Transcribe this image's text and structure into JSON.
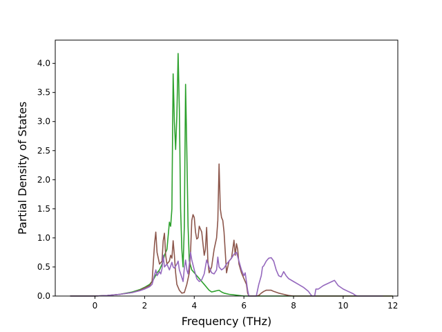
{
  "chart_data": {
    "type": "line",
    "title": "",
    "xlabel": "Frequency (THz)",
    "ylabel": "Partial Density of States",
    "xlim": [
      -1.6,
      12.2
    ],
    "ylim": [
      0.0,
      4.4
    ],
    "xticks": [
      0,
      2,
      4,
      6,
      8,
      10,
      12
    ],
    "yticks": [
      0.0,
      0.5,
      1.0,
      1.5,
      2.0,
      2.5,
      3.0,
      3.5,
      4.0
    ],
    "xtick_labels": [
      "0",
      "2",
      "4",
      "6",
      "8",
      "10",
      "12"
    ],
    "ytick_labels": [
      "0.0",
      "0.5",
      "1.0",
      "1.5",
      "2.0",
      "2.5",
      "3.0",
      "3.5",
      "4.0"
    ],
    "grid": false,
    "legend": "none",
    "series": [
      {
        "color": "#2ca02c",
        "points": [
          [
            -1.0,
            0.0
          ],
          [
            0.0,
            0.0
          ],
          [
            0.5,
            0.01
          ],
          [
            1.0,
            0.03
          ],
          [
            1.5,
            0.07
          ],
          [
            1.8,
            0.11
          ],
          [
            2.0,
            0.15
          ],
          [
            2.2,
            0.2
          ],
          [
            2.35,
            0.28
          ],
          [
            2.5,
            0.4
          ],
          [
            2.6,
            0.45
          ],
          [
            2.7,
            0.55
          ],
          [
            2.8,
            0.7
          ],
          [
            2.9,
            0.8
          ],
          [
            3.0,
            1.27
          ],
          [
            3.05,
            1.2
          ],
          [
            3.1,
            1.5
          ],
          [
            3.15,
            3.82
          ],
          [
            3.2,
            3.0
          ],
          [
            3.25,
            2.52
          ],
          [
            3.3,
            3.1
          ],
          [
            3.35,
            4.17
          ],
          [
            3.4,
            3.2
          ],
          [
            3.45,
            1.5
          ],
          [
            3.5,
            0.8
          ],
          [
            3.55,
            0.5
          ],
          [
            3.6,
            1.2
          ],
          [
            3.65,
            3.64
          ],
          [
            3.7,
            2.5
          ],
          [
            3.75,
            1.2
          ],
          [
            3.8,
            0.6
          ],
          [
            3.9,
            0.45
          ],
          [
            4.0,
            0.4
          ],
          [
            4.1,
            0.35
          ],
          [
            4.2,
            0.3
          ],
          [
            4.3,
            0.25
          ],
          [
            4.4,
            0.2
          ],
          [
            4.5,
            0.15
          ],
          [
            4.6,
            0.1
          ],
          [
            4.7,
            0.07
          ],
          [
            4.8,
            0.08
          ],
          [
            4.9,
            0.09
          ],
          [
            5.0,
            0.1
          ],
          [
            5.1,
            0.07
          ],
          [
            5.2,
            0.05
          ],
          [
            5.4,
            0.03
          ],
          [
            5.6,
            0.02
          ],
          [
            5.8,
            0.01
          ],
          [
            6.0,
            0.0
          ],
          [
            12.0,
            0.0
          ]
        ]
      },
      {
        "color": "#8c564b",
        "points": [
          [
            -1.0,
            0.0
          ],
          [
            0.0,
            0.0
          ],
          [
            0.5,
            0.01
          ],
          [
            1.0,
            0.03
          ],
          [
            1.5,
            0.06
          ],
          [
            1.8,
            0.1
          ],
          [
            2.0,
            0.14
          ],
          [
            2.2,
            0.18
          ],
          [
            2.3,
            0.25
          ],
          [
            2.4,
            0.9
          ],
          [
            2.45,
            1.1
          ],
          [
            2.5,
            0.75
          ],
          [
            2.6,
            0.55
          ],
          [
            2.7,
            0.6
          ],
          [
            2.75,
            0.95
          ],
          [
            2.8,
            1.08
          ],
          [
            2.85,
            0.7
          ],
          [
            2.9,
            0.55
          ],
          [
            3.0,
            0.6
          ],
          [
            3.05,
            0.7
          ],
          [
            3.1,
            0.65
          ],
          [
            3.15,
            0.95
          ],
          [
            3.2,
            0.7
          ],
          [
            3.25,
            0.4
          ],
          [
            3.3,
            0.2
          ],
          [
            3.4,
            0.1
          ],
          [
            3.5,
            0.05
          ],
          [
            3.6,
            0.06
          ],
          [
            3.7,
            0.2
          ],
          [
            3.8,
            0.4
          ],
          [
            3.85,
            0.75
          ],
          [
            3.9,
            1.3
          ],
          [
            3.95,
            1.4
          ],
          [
            4.0,
            1.35
          ],
          [
            4.05,
            1.1
          ],
          [
            4.1,
            0.98
          ],
          [
            4.15,
            1.0
          ],
          [
            4.2,
            1.2
          ],
          [
            4.25,
            1.15
          ],
          [
            4.3,
            1.1
          ],
          [
            4.35,
            0.9
          ],
          [
            4.4,
            0.7
          ],
          [
            4.45,
            0.8
          ],
          [
            4.5,
            1.18
          ],
          [
            4.55,
            0.6
          ],
          [
            4.6,
            0.4
          ],
          [
            4.7,
            0.5
          ],
          [
            4.8,
            0.8
          ],
          [
            4.9,
            1.0
          ],
          [
            4.95,
            1.3
          ],
          [
            5.0,
            2.27
          ],
          [
            5.05,
            1.5
          ],
          [
            5.1,
            1.35
          ],
          [
            5.15,
            1.3
          ],
          [
            5.2,
            1.1
          ],
          [
            5.25,
            0.75
          ],
          [
            5.3,
            0.4
          ],
          [
            5.35,
            0.5
          ],
          [
            5.4,
            0.6
          ],
          [
            5.5,
            0.65
          ],
          [
            5.55,
            0.8
          ],
          [
            5.6,
            0.96
          ],
          [
            5.65,
            0.7
          ],
          [
            5.7,
            0.9
          ],
          [
            5.75,
            0.8
          ],
          [
            5.8,
            0.55
          ],
          [
            5.9,
            0.4
          ],
          [
            6.0,
            0.3
          ],
          [
            6.1,
            0.2
          ],
          [
            6.15,
            0.05
          ],
          [
            6.2,
            0.0
          ],
          [
            6.5,
            0.0
          ],
          [
            6.6,
            0.01
          ],
          [
            6.7,
            0.05
          ],
          [
            6.8,
            0.08
          ],
          [
            6.9,
            0.1
          ],
          [
            7.0,
            0.1
          ],
          [
            7.1,
            0.1
          ],
          [
            7.2,
            0.08
          ],
          [
            7.4,
            0.05
          ],
          [
            7.6,
            0.03
          ],
          [
            7.8,
            0.01
          ],
          [
            8.0,
            0.0
          ],
          [
            12.0,
            0.0
          ]
        ]
      },
      {
        "color": "#9467bd",
        "points": [
          [
            -1.0,
            0.0
          ],
          [
            0.0,
            0.0
          ],
          [
            0.5,
            0.01
          ],
          [
            1.0,
            0.03
          ],
          [
            1.5,
            0.06
          ],
          [
            1.8,
            0.09
          ],
          [
            2.0,
            0.12
          ],
          [
            2.2,
            0.16
          ],
          [
            2.3,
            0.2
          ],
          [
            2.35,
            0.28
          ],
          [
            2.45,
            0.45
          ],
          [
            2.5,
            0.35
          ],
          [
            2.6,
            0.42
          ],
          [
            2.65,
            0.38
          ],
          [
            2.7,
            0.47
          ],
          [
            2.75,
            0.7
          ],
          [
            2.8,
            0.5
          ],
          [
            2.9,
            0.55
          ],
          [
            3.0,
            0.45
          ],
          [
            3.1,
            0.58
          ],
          [
            3.15,
            0.5
          ],
          [
            3.2,
            0.48
          ],
          [
            3.3,
            0.55
          ],
          [
            3.35,
            0.6
          ],
          [
            3.4,
            0.45
          ],
          [
            3.5,
            0.32
          ],
          [
            3.55,
            0.25
          ],
          [
            3.6,
            0.48
          ],
          [
            3.65,
            0.62
          ],
          [
            3.7,
            0.45
          ],
          [
            3.75,
            0.38
          ],
          [
            3.8,
            0.55
          ],
          [
            3.85,
            0.75
          ],
          [
            3.9,
            0.62
          ],
          [
            4.0,
            0.45
          ],
          [
            4.1,
            0.3
          ],
          [
            4.2,
            0.25
          ],
          [
            4.3,
            0.28
          ],
          [
            4.4,
            0.38
          ],
          [
            4.5,
            0.62
          ],
          [
            4.6,
            0.5
          ],
          [
            4.7,
            0.4
          ],
          [
            4.8,
            0.38
          ],
          [
            4.9,
            0.45
          ],
          [
            4.95,
            0.67
          ],
          [
            5.0,
            0.5
          ],
          [
            5.1,
            0.45
          ],
          [
            5.2,
            0.48
          ],
          [
            5.3,
            0.55
          ],
          [
            5.4,
            0.6
          ],
          [
            5.5,
            0.65
          ],
          [
            5.6,
            0.72
          ],
          [
            5.7,
            0.75
          ],
          [
            5.8,
            0.6
          ],
          [
            5.9,
            0.45
          ],
          [
            6.0,
            0.35
          ],
          [
            6.05,
            0.4
          ],
          [
            6.1,
            0.25
          ],
          [
            6.15,
            0.1
          ],
          [
            6.2,
            0.0
          ],
          [
            6.5,
            0.0
          ],
          [
            6.55,
            0.1
          ],
          [
            6.6,
            0.2
          ],
          [
            6.7,
            0.35
          ],
          [
            6.75,
            0.5
          ],
          [
            6.8,
            0.52
          ],
          [
            6.9,
            0.6
          ],
          [
            7.0,
            0.65
          ],
          [
            7.1,
            0.66
          ],
          [
            7.2,
            0.6
          ],
          [
            7.3,
            0.45
          ],
          [
            7.4,
            0.35
          ],
          [
            7.5,
            0.33
          ],
          [
            7.6,
            0.42
          ],
          [
            7.7,
            0.35
          ],
          [
            7.8,
            0.3
          ],
          [
            8.0,
            0.25
          ],
          [
            8.2,
            0.2
          ],
          [
            8.4,
            0.15
          ],
          [
            8.6,
            0.08
          ],
          [
            8.7,
            0.02
          ],
          [
            8.75,
            0.0
          ],
          [
            8.85,
            0.0
          ],
          [
            8.9,
            0.12
          ],
          [
            9.0,
            0.12
          ],
          [
            9.1,
            0.15
          ],
          [
            9.2,
            0.18
          ],
          [
            9.4,
            0.22
          ],
          [
            9.6,
            0.26
          ],
          [
            9.65,
            0.27
          ],
          [
            9.7,
            0.24
          ],
          [
            9.8,
            0.18
          ],
          [
            9.9,
            0.15
          ],
          [
            10.0,
            0.12
          ],
          [
            10.2,
            0.08
          ],
          [
            10.4,
            0.04
          ],
          [
            10.5,
            0.01
          ],
          [
            10.6,
            0.0
          ],
          [
            11.6,
            0.0
          ]
        ]
      }
    ]
  }
}
